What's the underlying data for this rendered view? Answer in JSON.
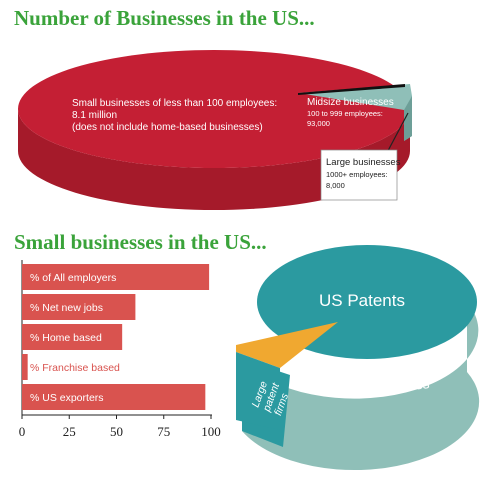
{
  "title1": "Number of Businesses in the US...",
  "title2": "Small businesses in the US...",
  "chart_data": [
    {
      "type": "pie",
      "slices": [
        {
          "label": "Small businesses of less than 100 employees:",
          "value_text": "8.1 million",
          "note": "(does not include home-based businesses)",
          "value": 8100000,
          "color": "#c41f34"
        },
        {
          "label": "Midsize businesses",
          "value_text": "100 to 999 employees:",
          "note": "93,000",
          "value": 93000,
          "color": "#8fbfb8"
        },
        {
          "label": "Large businesses",
          "value_text": "1000+ employees:",
          "note": "8,000",
          "value": 8000,
          "color": "#111111"
        }
      ]
    },
    {
      "type": "bar",
      "orientation": "horizontal",
      "categories": [
        "% of All employers",
        "% Net new jobs",
        "% Home based",
        "% Franchise based",
        "% US exporters"
      ],
      "values": [
        99,
        60,
        53,
        3,
        97
      ],
      "xlim": [
        0,
        100
      ],
      "xticks": [
        "0",
        "25",
        "50",
        "75",
        "100"
      ],
      "bar_color": "#d9534f"
    },
    {
      "type": "pie",
      "slices": [
        {
          "label": "US Patents",
          "value": null,
          "color": "#2b9aa0"
        },
        {
          "label": "Small business",
          "value": 88,
          "color": "#2b9aa0"
        },
        {
          "label": "Large patent firms",
          "value": 12,
          "color": "#f0a830"
        }
      ]
    }
  ]
}
